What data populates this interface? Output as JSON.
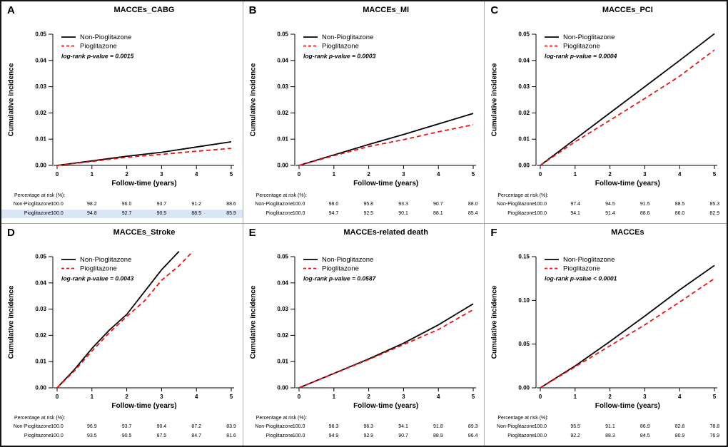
{
  "figure": {
    "legend": [
      "Non-Pioglitazone",
      "Pioglitazone"
    ],
    "colors": {
      "non_pio": "#000000",
      "pio": "#ee1111",
      "highlight": "#d9e6f5"
    }
  },
  "chart_data": [
    {
      "panel": "A",
      "type": "line",
      "title": "MACCEs_CABG",
      "p_value": "log-rank p-value = 0.0015",
      "xlabel": "Follow-time (years)",
      "ylabel": "Cumulative incidence",
      "xlim": [
        0,
        5
      ],
      "ylim": [
        0,
        0.05
      ],
      "x_ticks": [
        0,
        1,
        2,
        3,
        4,
        5
      ],
      "y_ticks": [
        "0.00",
        "0.01",
        "0.02",
        "0.03",
        "0.04",
        "0.05"
      ],
      "series": [
        {
          "name": "Non-Pioglitazone",
          "dash": "solid",
          "x": [
            0,
            1,
            2,
            3,
            4,
            5
          ],
          "y": [
            0,
            0.0017,
            0.0035,
            0.005,
            0.007,
            0.009
          ]
        },
        {
          "name": "Pioglitazone",
          "dash": "dashed",
          "x": [
            0,
            1,
            2,
            3,
            4,
            5
          ],
          "y": [
            0,
            0.0015,
            0.0031,
            0.0042,
            0.0054,
            0.0065
          ]
        }
      ],
      "risk_table": {
        "header": "Percentage at risk (%):",
        "times": [
          0,
          1,
          2,
          3,
          4,
          5
        ],
        "rows": [
          {
            "name": "Non-Pioglitazone",
            "values": [
              "100.0",
              "98.2",
              "96.0",
              "93.7",
              "91.2",
              "88.6"
            ]
          },
          {
            "name": "Pioglitazone",
            "highlight": true,
            "values": [
              "100.0",
              "94.8",
              "92.7",
              "90.5",
              "88.5",
              "85.9"
            ]
          }
        ]
      }
    },
    {
      "panel": "B",
      "type": "line",
      "title": "MACCEs_MI",
      "p_value": "log-rank p-value = 0.0003",
      "xlabel": "Follow-time (years)",
      "ylabel": "Cumulative incidence",
      "xlim": [
        0,
        5
      ],
      "ylim": [
        0,
        0.05
      ],
      "x_ticks": [
        0,
        1,
        2,
        3,
        4,
        5
      ],
      "y_ticks": [
        "0.00",
        "0.01",
        "0.02",
        "0.03",
        "0.04",
        "0.05"
      ],
      "series": [
        {
          "name": "Non-Pioglitazone",
          "dash": "solid",
          "x": [
            0,
            1,
            2,
            3,
            4,
            5
          ],
          "y": [
            0,
            0.004,
            0.008,
            0.0118,
            0.0158,
            0.0198
          ]
        },
        {
          "name": "Pioglitazone",
          "dash": "dashed",
          "x": [
            0,
            1,
            2,
            3,
            4,
            5
          ],
          "y": [
            0,
            0.0037,
            0.0072,
            0.0098,
            0.0128,
            0.0155
          ]
        }
      ],
      "risk_table": {
        "header": "Percentage at risk (%):",
        "times": [
          0,
          1,
          2,
          3,
          4,
          5
        ],
        "rows": [
          {
            "name": "Non-Pioglitazone",
            "values": [
              "100.0",
              "98.0",
              "95.8",
              "93.3",
              "90.7",
              "88.0"
            ]
          },
          {
            "name": "Pioglitazone",
            "values": [
              "100.0",
              "94.7",
              "92.5",
              "90.1",
              "88.1",
              "85.4"
            ]
          }
        ]
      }
    },
    {
      "panel": "C",
      "type": "line",
      "title": "MACCEs_PCI",
      "p_value": "log-rank p-value = 0.0004",
      "xlabel": "Follow-time (years)",
      "ylabel": "Cumulative incidence",
      "xlim": [
        0,
        5
      ],
      "ylim": [
        0,
        0.05
      ],
      "x_ticks": [
        0,
        1,
        2,
        3,
        4,
        5
      ],
      "y_ticks": [
        "0.00",
        "0.01",
        "0.02",
        "0.03",
        "0.04",
        "0.05"
      ],
      "series": [
        {
          "name": "Non-Pioglitazone",
          "dash": "solid",
          "x": [
            0,
            1,
            2,
            3,
            4,
            5
          ],
          "y": [
            0,
            0.01,
            0.02,
            0.03,
            0.04,
            0.0502
          ]
        },
        {
          "name": "Pioglitazone",
          "dash": "dashed",
          "x": [
            0,
            1,
            2,
            3,
            4,
            5
          ],
          "y": [
            0,
            0.009,
            0.0172,
            0.0255,
            0.034,
            0.044
          ]
        }
      ],
      "risk_table": {
        "header": "Percentage at risk (%):",
        "times": [
          0,
          1,
          2,
          3,
          4,
          5
        ],
        "rows": [
          {
            "name": "Non-Pioglitazone",
            "values": [
              "100.0",
              "97.4",
              "94.5",
              "91.5",
              "88.5",
              "85.3"
            ]
          },
          {
            "name": "Pioglitazone",
            "values": [
              "100.0",
              "94.1",
              "91.4",
              "88.6",
              "86.0",
              "82.9"
            ]
          }
        ]
      }
    },
    {
      "panel": "D",
      "type": "line",
      "title": "MACCEs_Stroke",
      "p_value": "log-rank p-value = 0.0043",
      "xlabel": "Follow-time (years)",
      "ylabel": "Cumulative incidence",
      "xlim": [
        0,
        5
      ],
      "ylim": [
        0,
        0.05
      ],
      "x_ticks": [
        0,
        1,
        2,
        3,
        4,
        5
      ],
      "y_ticks": [
        "0.00",
        "0.01",
        "0.02",
        "0.03",
        "0.04",
        "0.05"
      ],
      "series": [
        {
          "name": "Non-Pioglitazone",
          "dash": "solid",
          "x": [
            0,
            0.5,
            1,
            1.5,
            2,
            2.5,
            3,
            3.5
          ],
          "y": [
            0,
            0.007,
            0.015,
            0.022,
            0.028,
            0.0365,
            0.045,
            0.052
          ]
        },
        {
          "name": "Pioglitazone",
          "dash": "dashed",
          "x": [
            0,
            0.5,
            1,
            1.5,
            2,
            2.5,
            3,
            3.5,
            3.9
          ],
          "y": [
            0,
            0.0065,
            0.014,
            0.021,
            0.0272,
            0.033,
            0.041,
            0.0465,
            0.052
          ]
        }
      ],
      "risk_table": {
        "header": "Percentage at risk (%):",
        "times": [
          0,
          1,
          2,
          3,
          4,
          5
        ],
        "rows": [
          {
            "name": "Non-Pioglitazone",
            "values": [
              "100.0",
              "96.9",
              "93.7",
              "90.4",
              "87.2",
              "83.9"
            ]
          },
          {
            "name": "Pioglitazone",
            "values": [
              "100.0",
              "93.5",
              "90.5",
              "87.5",
              "84.7",
              "81.6"
            ]
          }
        ]
      }
    },
    {
      "panel": "E",
      "type": "line",
      "title": "MACCEs-related death",
      "p_value": "log-rank p-value = 0.0587",
      "xlabel": "Follow-time (years)",
      "ylabel": "Cumulative incidence",
      "xlim": [
        0,
        5
      ],
      "ylim": [
        0,
        0.05
      ],
      "x_ticks": [
        0,
        1,
        2,
        3,
        4,
        5
      ],
      "y_ticks": [
        "0.00",
        "0.01",
        "0.02",
        "0.03",
        "0.04",
        "0.05"
      ],
      "series": [
        {
          "name": "Non-Pioglitazone",
          "dash": "solid",
          "x": [
            0,
            1,
            2,
            3,
            4,
            5
          ],
          "y": [
            0,
            0.0055,
            0.011,
            0.017,
            0.024,
            0.032
          ]
        },
        {
          "name": "Pioglitazone",
          "dash": "dashed",
          "x": [
            0,
            1,
            2,
            3,
            4,
            5
          ],
          "y": [
            0,
            0.0054,
            0.0108,
            0.0165,
            0.0222,
            0.0298
          ]
        }
      ],
      "risk_table": {
        "header": "Percentage at risk (%):",
        "times": [
          0,
          1,
          2,
          3,
          4,
          5
        ],
        "rows": [
          {
            "name": "Non-Pioglitazone",
            "values": [
              "100.0",
              "98.3",
              "96.3",
              "94.1",
              "91.8",
              "89.3"
            ]
          },
          {
            "name": "Pioglitazone",
            "values": [
              "100.0",
              "94.9",
              "92.9",
              "90.7",
              "88.9",
              "86.4"
            ]
          }
        ]
      }
    },
    {
      "panel": "F",
      "type": "line",
      "title": "MACCEs",
      "p_value": "log-rank p-value < 0.0001",
      "xlabel": "Follow-time (years)",
      "ylabel": "Cumulative incidence",
      "xlim": [
        0,
        5
      ],
      "ylim": [
        0,
        0.15
      ],
      "x_ticks": [
        0,
        1,
        2,
        3,
        4,
        5
      ],
      "y_ticks": [
        "0.00",
        "0.05",
        "0.10",
        "0.15"
      ],
      "series": [
        {
          "name": "Non-Pioglitazone",
          "dash": "solid",
          "x": [
            0,
            1,
            2,
            3,
            4,
            5
          ],
          "y": [
            0,
            0.025,
            0.053,
            0.082,
            0.112,
            0.14
          ]
        },
        {
          "name": "Pioglitazone",
          "dash": "dashed",
          "x": [
            0,
            1,
            2,
            3,
            4,
            5
          ],
          "y": [
            0,
            0.024,
            0.048,
            0.072,
            0.098,
            0.125
          ]
        }
      ],
      "risk_table": {
        "header": "Percentage at risk (%):",
        "times": [
          0,
          1,
          2,
          3,
          4,
          5
        ],
        "rows": [
          {
            "name": "Non-Pioglitazone",
            "values": [
              "100.0",
              "95.5",
              "91.1",
              "86.9",
              "82.8",
              "78.8"
            ]
          },
          {
            "name": "Pioglitazone",
            "values": [
              "100.0",
              "92.2",
              "88.3",
              "84.5",
              "80.9",
              "76.9"
            ]
          }
        ]
      }
    }
  ]
}
